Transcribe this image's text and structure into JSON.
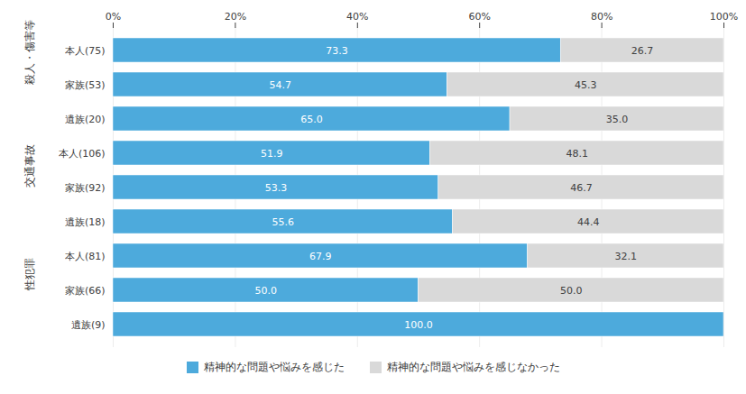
{
  "chart_data": {
    "type": "bar",
    "orientation": "horizontal",
    "stacked": true,
    "categories": [
      "本人(75)",
      "家族(53)",
      "遺族(20)",
      "本人(106)",
      "家族(92)",
      "遺族(18)",
      "本人(81)",
      "家族(66)",
      "遺族(9)"
    ],
    "groups": [
      {
        "name": "殺人・傷害等",
        "categories": [
          "本人(75)",
          "家族(53)",
          "遺族(20)"
        ]
      },
      {
        "name": "交通事故",
        "categories": [
          "本人(106)",
          "家族(92)",
          "遺族(18)"
        ]
      },
      {
        "name": "性犯罪",
        "categories": [
          "本人(81)",
          "家族(66)",
          "遺族(9)"
        ]
      }
    ],
    "series": [
      {
        "name": "精神的な問題や悩みを感じた",
        "color": "#4DAADC",
        "values": [
          73.3,
          54.7,
          65.0,
          51.9,
          53.3,
          55.6,
          67.9,
          50.0,
          100.0
        ],
        "value_labels": [
          "73.3",
          "54.7",
          "65.0",
          "51.9",
          "53.3",
          "55.6",
          "67.9",
          "50.0",
          "100.0"
        ]
      },
      {
        "name": "精神的な問題や悩みを感じなかった",
        "color": "#D9D9D9",
        "values": [
          26.7,
          45.3,
          35.0,
          48.1,
          46.7,
          44.4,
          32.1,
          50.0,
          0.0
        ],
        "value_labels": [
          "26.7",
          "45.3",
          "35.0",
          "48.1",
          "46.7",
          "44.4",
          "32.1",
          "50.0",
          null
        ]
      }
    ],
    "xlim": [
      0,
      100
    ],
    "xticks": [
      {
        "value": 0,
        "label": "0%"
      },
      {
        "value": 20,
        "label": "20%"
      },
      {
        "value": 40,
        "label": "40%"
      },
      {
        "value": 60,
        "label": "60%"
      },
      {
        "value": 80,
        "label": "80%"
      },
      {
        "value": 100,
        "label": "100%"
      }
    ],
    "grid": true,
    "legend": "bottom",
    "data_labels": true
  }
}
